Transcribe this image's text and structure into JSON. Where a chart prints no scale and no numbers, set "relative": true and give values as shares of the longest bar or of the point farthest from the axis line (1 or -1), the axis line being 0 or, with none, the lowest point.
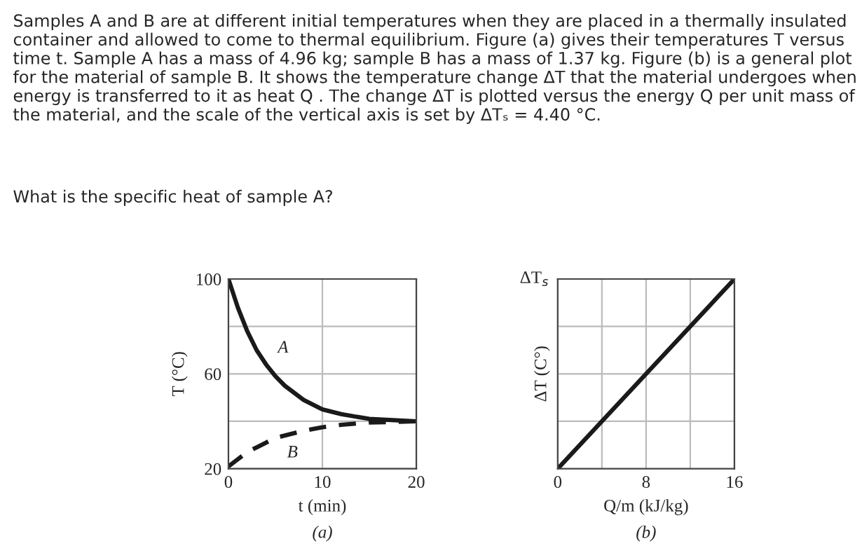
{
  "chart_data": [
    {
      "type": "line",
      "subtitle": "(a)",
      "xlabel": "t (min)",
      "ylabel": "T (°C)",
      "annotations": [
        "Samples A and B are at different initial temperatures when they are placed in a thermally insulated container and allowed to come to thermal equilibrium. Figure (a) gives their temperatures T versus time t. Sample A has a mass of 4.96 kg; sample B has a mass of 1.37 kg. Figure (b) is a general plot for the material of sample B. It shows the temperature change ΔT that the material undergoes when energy is transferred to it as heat Q . The change ΔT is plotted versus the energy Q per unit mass of the material, and the scale of the vertical axis is set by ΔTₛ = 4.40 °C.",
        "What is the specific heat of sample A?"
      ],
      "x": [
        0,
        1,
        2,
        3,
        4,
        5,
        6,
        8,
        10,
        12,
        15,
        20
      ],
      "series": [
        {
          "name": "A",
          "color": "#1a1a1a",
          "line_style": "solid",
          "values": [
            100,
            88,
            78,
            70,
            64,
            59,
            55,
            49,
            45,
            43,
            41,
            40
          ]
        },
        {
          "name": "B",
          "color": "#1a1a1a",
          "line_style": "dashed",
          "values": [
            21,
            24,
            27,
            29,
            31,
            33,
            34,
            36,
            37.5,
            38.5,
            39.5,
            40
          ]
        }
      ],
      "xlim": [
        0,
        20
      ],
      "ylim": [
        20,
        100
      ],
      "xticks": [
        0,
        10,
        20
      ],
      "yticks": [
        20,
        {
          "value": 40,
          "label": null
        },
        60,
        {
          "value": 80,
          "label": null
        },
        100
      ],
      "grid": true,
      "legend": false
    },
    {
      "type": "line",
      "subtitle": "(b)",
      "xlabel": "Q/m (kJ/kg)",
      "ylabel": "ΔT (C°)",
      "annotations": [
        "ΔT$_{s}$"
      ],
      "relative": true,
      "x": [
        0,
        16
      ],
      "series": [
        {
          "color": "#1a1a1a",
          "line_style": "solid",
          "values": [
            0,
            1
          ]
        }
      ],
      "xlim": [
        0,
        16
      ],
      "xticks": [
        0,
        {
          "value": 4,
          "label": null
        },
        8,
        {
          "value": 12,
          "label": null
        },
        16
      ],
      "grid": true,
      "legend": false
    }
  ]
}
